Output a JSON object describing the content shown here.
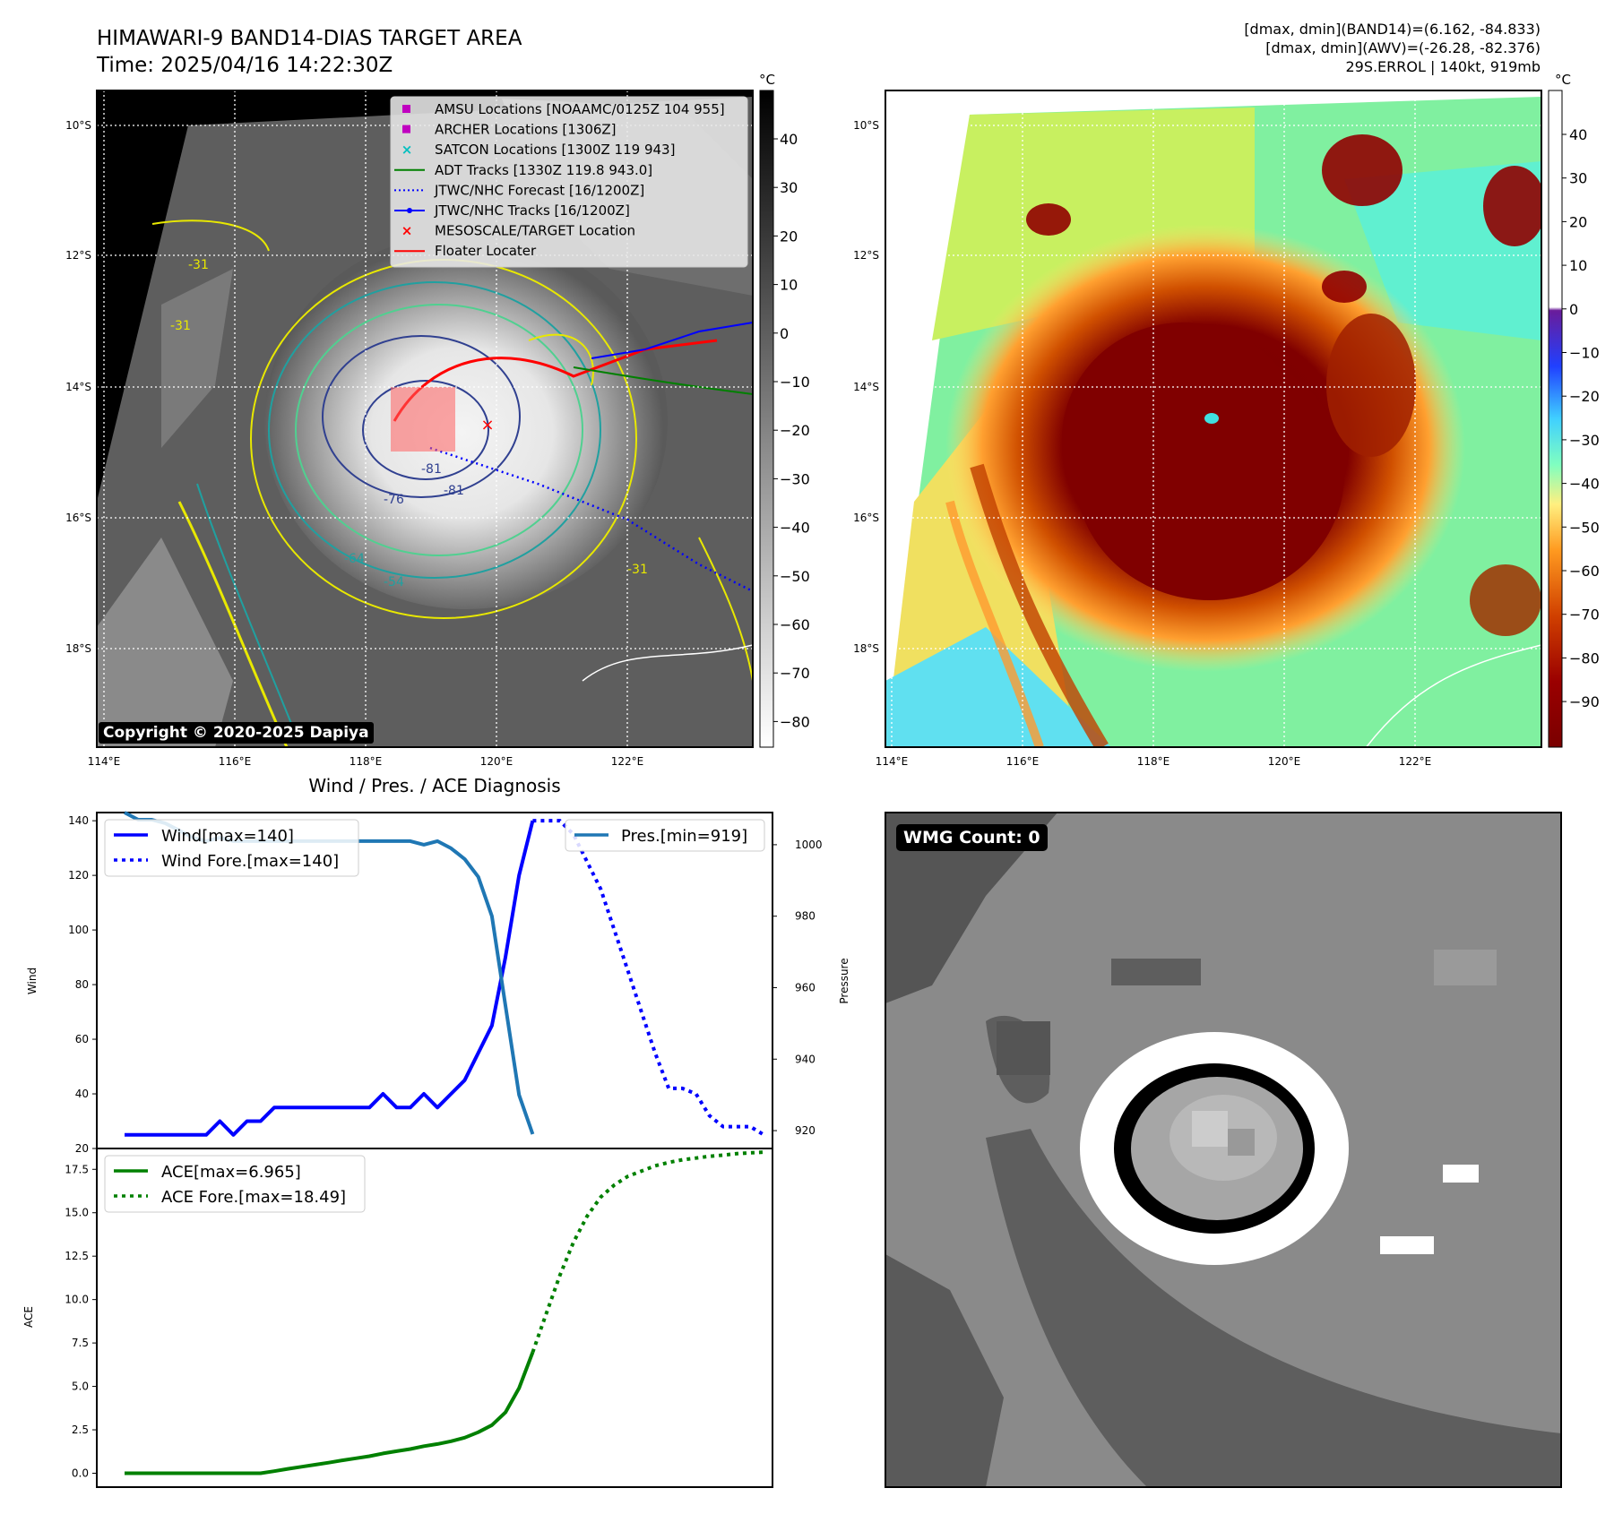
{
  "header": {
    "title": "HIMAWARI-9 BAND14-DIAS TARGET AREA",
    "time": "Time: 2025/04/16 14:22:30Z",
    "stats": [
      "[dmax, dmin](BAND14)=(6.162, -84.833)",
      "[dmax, dmin](AWV)=(-26.28, -82.376)",
      "29S.ERROL | 140kt, 919mb"
    ]
  },
  "map": {
    "lat_labels": [
      "10°S",
      "12°S",
      "14°S",
      "16°S",
      "18°S"
    ],
    "lon_labels": [
      "114°E",
      "116°E",
      "118°E",
      "120°E",
      "122°E"
    ],
    "copyright": "Copyright © 2020-2025 Dapiya",
    "contour_labels": [
      "-81",
      "-81",
      "-76",
      "-64",
      "-54",
      "-31",
      "-31",
      "-31"
    ],
    "legend": [
      {
        "label": "AMSU Locations [NOAAMC/0125Z 104 955]",
        "color": "#c000c0",
        "marker": "square"
      },
      {
        "label": "ARCHER Locations [1306Z]",
        "color": "#c000c0",
        "marker": "square"
      },
      {
        "label": "SATCON Locations [1300Z 119 943]",
        "color": "#00bfbf",
        "marker": "x"
      },
      {
        "label": "ADT Tracks [1330Z 119.8 943.0]",
        "color": "#008000",
        "marker": "line"
      },
      {
        "label": "JTWC/NHC Forecast [16/1200Z]",
        "color": "#0000ff",
        "marker": "dotted"
      },
      {
        "label": "JTWC/NHC Tracks [16/1200Z]",
        "color": "#0000ff",
        "marker": "line-dot"
      },
      {
        "label": "MESOSCALE/TARGET Location",
        "color": "#ff0000",
        "marker": "x"
      },
      {
        "label": "Floater Locater",
        "color": "#ff0000",
        "marker": "line"
      }
    ]
  },
  "colorbar_gray": {
    "unit": "°C",
    "ticks": [
      "40",
      "30",
      "20",
      "10",
      "0",
      "−10",
      "−20",
      "−30",
      "−40",
      "−50",
      "−60",
      "−70",
      "−80"
    ]
  },
  "colorbar_color": {
    "unit": "°C",
    "ticks": [
      "40",
      "30",
      "20",
      "10",
      "0",
      "−10",
      "−20",
      "−30",
      "−40",
      "−50",
      "−60",
      "−70",
      "−80",
      "−90"
    ]
  },
  "wmg": {
    "label": "WMG Count: 0"
  },
  "chart_data": [
    {
      "type": "line",
      "title": "Wind / Pres. / ACE Diagnosis",
      "ylabel": "Wind",
      "y2label": "Pressure",
      "ylim": [
        20,
        143
      ],
      "y2lim": [
        915,
        1009
      ],
      "yticks": [
        "20",
        "40",
        "60",
        "80",
        "100",
        "120",
        "140"
      ],
      "y2ticks": [
        "920",
        "940",
        "960",
        "980",
        "1000"
      ],
      "legend_left": [
        "Wind[max=140]",
        "Wind Fore.[max=140]"
      ],
      "legend_right": [
        "Pres.[min=919]"
      ],
      "series": [
        {
          "name": "Wind[max=140]",
          "color": "#0000ff",
          "style": "solid",
          "axis": "left",
          "values": [
            25,
            25,
            25,
            25,
            25,
            25,
            25,
            30,
            25,
            30,
            30,
            35,
            35,
            35,
            35,
            35,
            35,
            35,
            35,
            40,
            35,
            35,
            40,
            35,
            40,
            45,
            55,
            65,
            90,
            120,
            140
          ]
        },
        {
          "name": "Wind Fore.[max=140]",
          "color": "#0000ff",
          "style": "dotted",
          "axis": "left",
          "start_index": 30,
          "values": [
            140,
            140,
            140,
            135,
            125,
            115,
            100,
            85,
            70,
            55,
            42,
            42,
            40,
            32,
            28,
            28,
            28,
            25
          ]
        },
        {
          "name": "Pres.[min=919]",
          "color": "#1f77b4",
          "style": "solid",
          "axis": "right",
          "values": [
            1009,
            1007,
            1007,
            1006,
            1004,
            1002,
            1001,
            1002,
            1001,
            1001,
            1001,
            1001,
            1001,
            1001,
            1001,
            1001,
            1001,
            1001,
            1001,
            1001,
            1001,
            1001,
            1000,
            1001,
            999,
            996,
            991,
            980,
            955,
            930,
            919
          ]
        }
      ]
    },
    {
      "type": "line",
      "ylabel": "ACE",
      "ylim": [
        -0.8,
        18.7
      ],
      "yticks": [
        "0.0",
        "2.5",
        "5.0",
        "7.5",
        "10.0",
        "12.5",
        "15.0",
        "17.5"
      ],
      "legend": [
        "ACE[max=6.965]",
        "ACE Fore.[max=18.49]"
      ],
      "series": [
        {
          "name": "ACE[max=6.965]",
          "color": "#008000",
          "style": "solid",
          "values": [
            0,
            0,
            0,
            0,
            0,
            0,
            0,
            0,
            0,
            0,
            0,
            0.12,
            0.25,
            0.37,
            0.49,
            0.61,
            0.74,
            0.86,
            0.98,
            1.14,
            1.27,
            1.39,
            1.56,
            1.68,
            1.84,
            2.05,
            2.36,
            2.77,
            3.5,
            4.9,
            6.965
          ]
        },
        {
          "name": "ACE Fore.[max=18.49]",
          "color": "#008000",
          "style": "dotted",
          "start_index": 30,
          "values": [
            6.965,
            9.2,
            11.4,
            13.3,
            14.8,
            15.9,
            16.6,
            17.1,
            17.4,
            17.7,
            17.9,
            18.05,
            18.15,
            18.25,
            18.32,
            18.4,
            18.45,
            18.49
          ]
        }
      ]
    }
  ]
}
